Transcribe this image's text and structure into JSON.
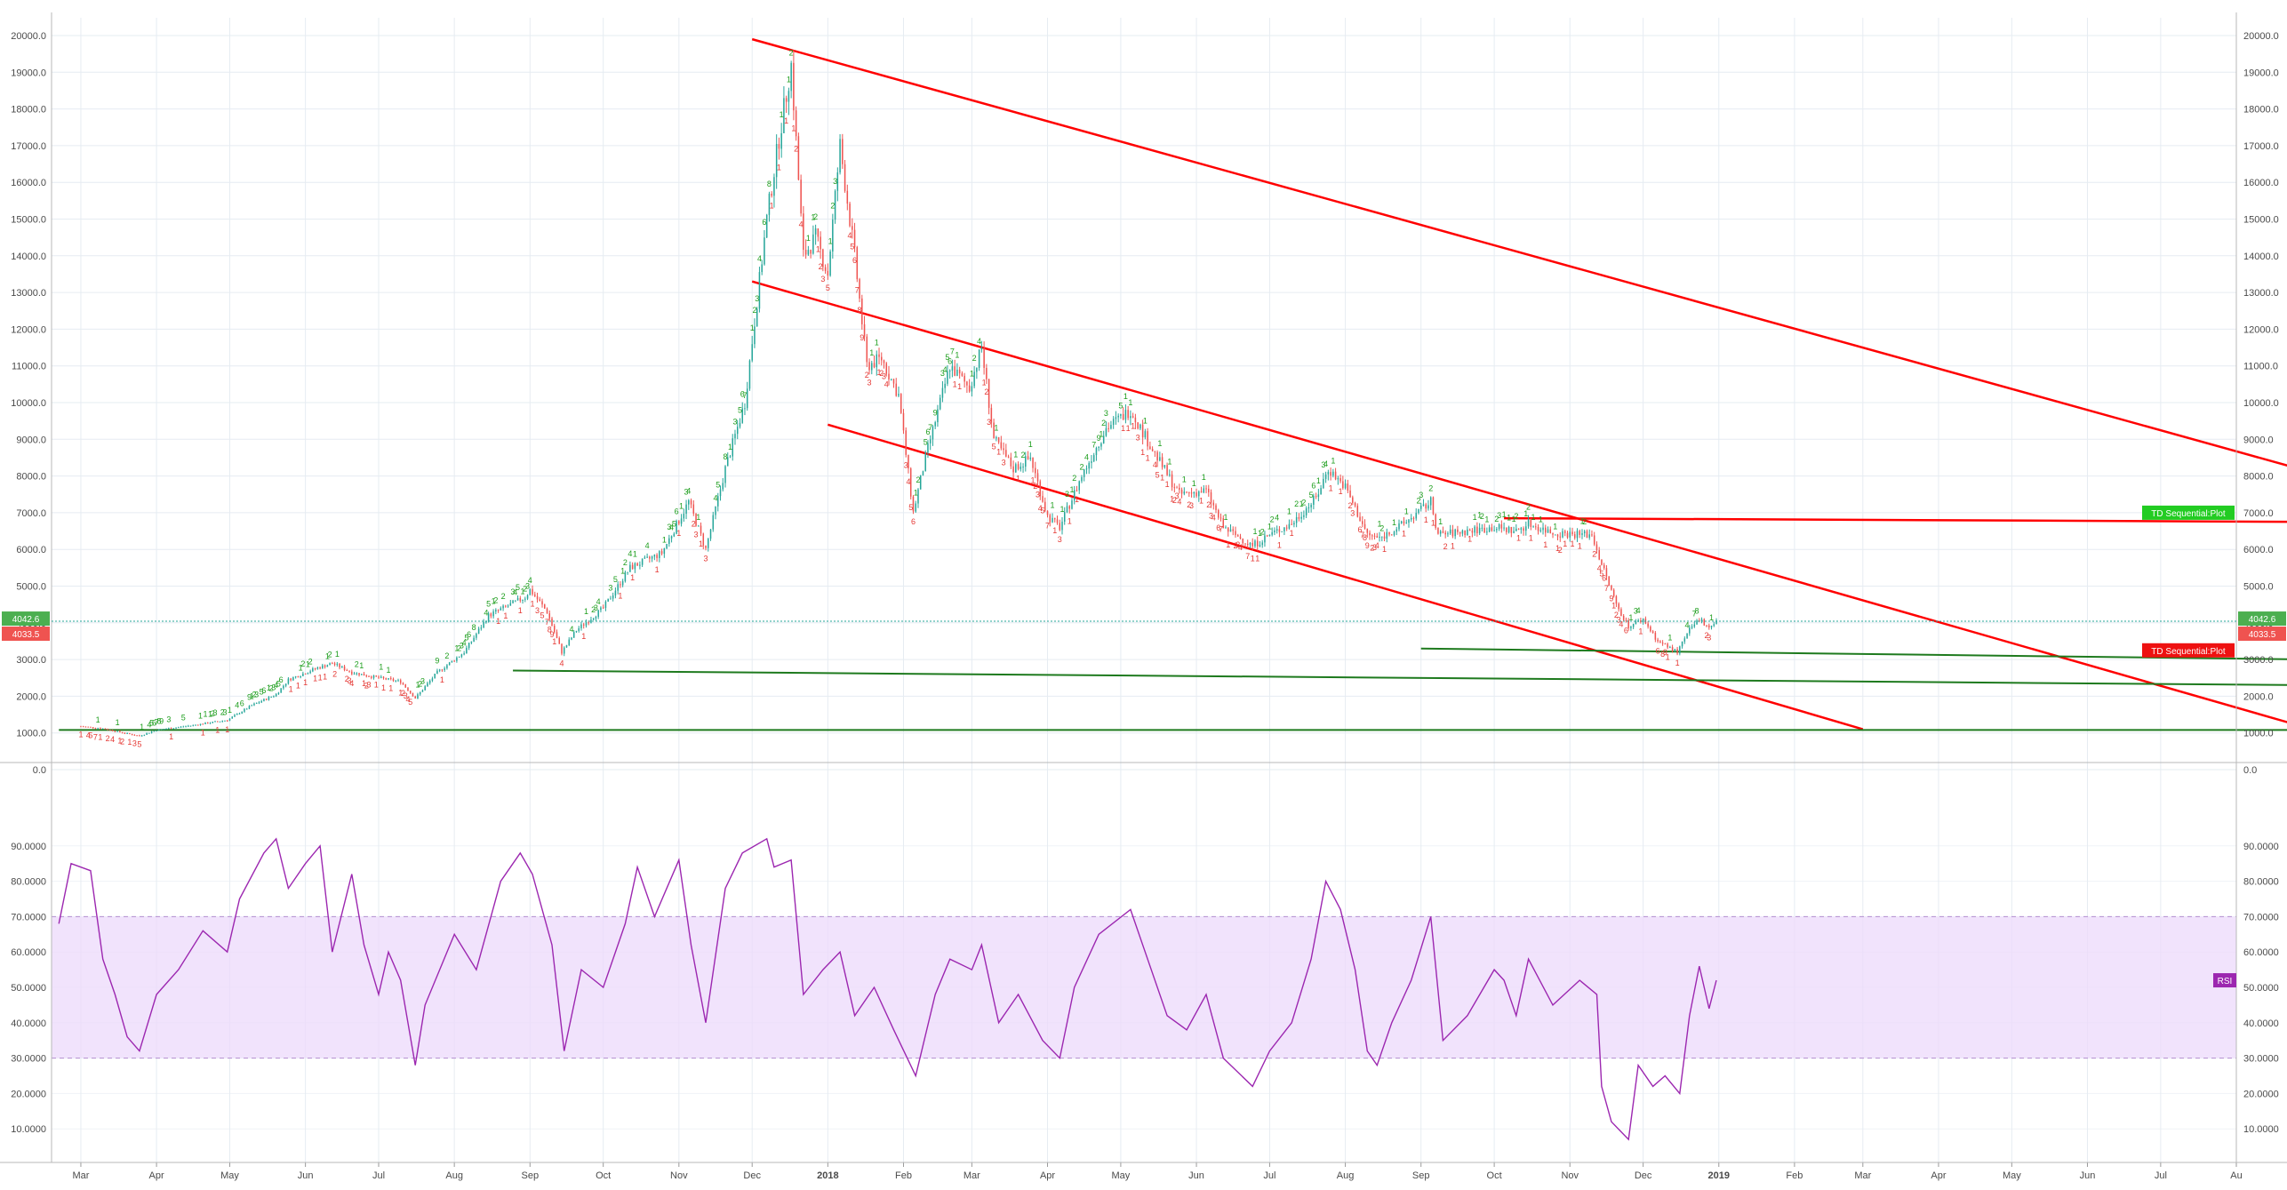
{
  "chart_data": [
    {
      "type": "candlestick",
      "title": "",
      "xlabel": "",
      "ylabel": "",
      "ylim": [
        0,
        20000
      ],
      "y_ticks": [
        "0.0",
        "1000.0",
        "2000.0",
        "3000.0",
        "4000.0",
        "5000.0",
        "6000.0",
        "7000.0",
        "8000.0",
        "9000.0",
        "10000.0",
        "11000.0",
        "12000.0",
        "13000.0",
        "14000.0",
        "15000.0",
        "16000.0",
        "17000.0",
        "18000.0",
        "19000.0",
        "20000.0"
      ],
      "grid": true,
      "colors": {
        "up": "#26a69a",
        "down": "#ef5350",
        "trend": "#ff0000",
        "support": "#1e7a1e"
      },
      "price_series": [
        [
          "2017-03-01",
          1180
        ],
        [
          "2017-03-10",
          1120
        ],
        [
          "2017-03-20",
          980
        ],
        [
          "2017-03-25",
          920
        ],
        [
          "2017-04-01",
          1080
        ],
        [
          "2017-04-15",
          1200
        ],
        [
          "2017-04-30",
          1350
        ],
        [
          "2017-05-10",
          1750
        ],
        [
          "2017-05-20",
          2050
        ],
        [
          "2017-05-25",
          2450
        ],
        [
          "2017-06-05",
          2750
        ],
        [
          "2017-06-12",
          2900
        ],
        [
          "2017-06-20",
          2650
        ],
        [
          "2017-07-01",
          2500
        ],
        [
          "2017-07-10",
          2400
        ],
        [
          "2017-07-16",
          1950
        ],
        [
          "2017-07-25",
          2650
        ],
        [
          "2017-08-05",
          3200
        ],
        [
          "2017-08-15",
          4200
        ],
        [
          "2017-08-30",
          4700
        ],
        [
          "2017-09-01",
          4900
        ],
        [
          "2017-09-08",
          4300
        ],
        [
          "2017-09-14",
          3200
        ],
        [
          "2017-09-20",
          3800
        ],
        [
          "2017-10-01",
          4400
        ],
        [
          "2017-10-12",
          5500
        ],
        [
          "2017-10-25",
          5900
        ],
        [
          "2017-11-05",
          7300
        ],
        [
          "2017-11-12",
          6000
        ],
        [
          "2017-11-20",
          8200
        ],
        [
          "2017-11-28",
          10000
        ],
        [
          "2017-12-07",
          15000
        ],
        [
          "2017-12-12",
          17200
        ],
        [
          "2017-12-17",
          19200
        ],
        [
          "2017-12-22",
          14000
        ],
        [
          "2017-12-27",
          14500
        ],
        [
          "2018-01-01",
          13500
        ],
        [
          "2018-01-06",
          17000
        ],
        [
          "2018-01-12",
          14000
        ],
        [
          "2018-01-17",
          11000
        ],
        [
          "2018-01-23",
          11200
        ],
        [
          "2018-01-30",
          10200
        ],
        [
          "2018-02-05",
          7000
        ],
        [
          "2018-02-10",
          8500
        ],
        [
          "2018-02-20",
          11000
        ],
        [
          "2018-02-28",
          10400
        ],
        [
          "2018-03-05",
          11500
        ],
        [
          "2018-03-10",
          9000
        ],
        [
          "2018-03-18",
          8200
        ],
        [
          "2018-03-25",
          8500
        ],
        [
          "2018-04-01",
          6900
        ],
        [
          "2018-04-06",
          6600
        ],
        [
          "2018-04-15",
          8000
        ],
        [
          "2018-04-25",
          9300
        ],
        [
          "2018-05-05",
          9800
        ],
        [
          "2018-05-15",
          8600
        ],
        [
          "2018-05-25",
          7500
        ],
        [
          "2018-06-05",
          7600
        ],
        [
          "2018-06-12",
          6600
        ],
        [
          "2018-06-24",
          6100
        ],
        [
          "2018-07-01",
          6400
        ],
        [
          "2018-07-10",
          6700
        ],
        [
          "2018-07-20",
          7400
        ],
        [
          "2018-07-25",
          8200
        ],
        [
          "2018-08-01",
          7700
        ],
        [
          "2018-08-10",
          6400
        ],
        [
          "2018-08-15",
          6300
        ],
        [
          "2018-08-25",
          6700
        ],
        [
          "2018-09-05",
          7300
        ],
        [
          "2018-09-08",
          6400
        ],
        [
          "2018-09-20",
          6500
        ],
        [
          "2018-10-01",
          6600
        ],
        [
          "2018-10-10",
          6500
        ],
        [
          "2018-10-15",
          6700
        ],
        [
          "2018-10-25",
          6450
        ],
        [
          "2018-11-10",
          6400
        ],
        [
          "2018-11-14",
          5600
        ],
        [
          "2018-11-20",
          4500
        ],
        [
          "2018-11-25",
          3900
        ],
        [
          "2018-12-01",
          4100
        ],
        [
          "2018-12-07",
          3500
        ],
        [
          "2018-12-15",
          3200
        ],
        [
          "2018-12-20",
          3800
        ],
        [
          "2018-12-24",
          4100
        ],
        [
          "2018-12-28",
          3900
        ],
        [
          "2018-12-31",
          4040
        ]
      ],
      "last_price_labels": [
        "4042.6",
        "4033.5"
      ],
      "legend_tags": [
        "TD Sequential:Plot",
        "TD Sequential:Plot"
      ],
      "td_counts_visible": [
        "1",
        "2",
        "3",
        "4",
        "5",
        "6",
        "7",
        "8",
        "9"
      ],
      "trendlines": [
        {
          "color": "trend",
          "from": [
            "2017-12-01",
            19900
          ],
          "to": [
            "2019-09-01",
            8100
          ]
        },
        {
          "color": "trend",
          "from": [
            "2017-12-01",
            13300
          ],
          "to": [
            "2019-09-01",
            1100
          ]
        },
        {
          "color": "trend",
          "from": [
            "2018-01-01",
            9400
          ],
          "to": [
            "2019-03-01",
            1100
          ]
        },
        {
          "color": "trend",
          "from": [
            "2018-10-05",
            6850
          ],
          "to": [
            "2019-09-01",
            6750
          ]
        },
        {
          "color": "support",
          "from": [
            "2017-08-25",
            2700
          ],
          "to": [
            "2019-09-01",
            2300
          ]
        },
        {
          "color": "support",
          "from": [
            "2018-09-01",
            3300
          ],
          "to": [
            "2019-09-01",
            3000
          ]
        },
        {
          "color": "support",
          "from": [
            "2017-02-20",
            1080
          ],
          "to": [
            "2019-09-01",
            1080
          ]
        }
      ],
      "x_ticks": [
        "Mar",
        "Apr",
        "May",
        "Jun",
        "Jul",
        "Aug",
        "Sep",
        "Oct",
        "Nov",
        "Dec",
        "2018",
        "Feb",
        "Mar",
        "Apr",
        "May",
        "Jun",
        "Jul",
        "Aug",
        "Sep",
        "Oct",
        "Nov",
        "Dec",
        "2019",
        "Feb",
        "Mar",
        "Apr",
        "May",
        "Jun",
        "Jul",
        "Au"
      ]
    },
    {
      "type": "line",
      "title": "",
      "legend_tag": "RSI",
      "ylim": [
        0,
        100
      ],
      "y_ticks": [
        "10.0000",
        "20.0000",
        "30.0000",
        "40.0000",
        "50.0000",
        "60.0000",
        "70.0000",
        "80.0000",
        "90.0000"
      ],
      "band": [
        30,
        70
      ],
      "colors": {
        "line": "#9c27b0",
        "band": "#ecd9fb"
      },
      "rsi_series": [
        [
          "2017-02-20",
          68
        ],
        [
          "2017-02-25",
          85
        ],
        [
          "2017-03-05",
          83
        ],
        [
          "2017-03-10",
          58
        ],
        [
          "2017-03-15",
          48
        ],
        [
          "2017-03-20",
          36
        ],
        [
          "2017-03-25",
          32
        ],
        [
          "2017-04-01",
          48
        ],
        [
          "2017-04-10",
          55
        ],
        [
          "2017-04-20",
          66
        ],
        [
          "2017-04-30",
          60
        ],
        [
          "2017-05-05",
          75
        ],
        [
          "2017-05-15",
          88
        ],
        [
          "2017-05-20",
          92
        ],
        [
          "2017-05-25",
          78
        ],
        [
          "2017-06-01",
          85
        ],
        [
          "2017-06-07",
          90
        ],
        [
          "2017-06-12",
          60
        ],
        [
          "2017-06-20",
          82
        ],
        [
          "2017-06-25",
          62
        ],
        [
          "2017-07-01",
          48
        ],
        [
          "2017-07-05",
          60
        ],
        [
          "2017-07-10",
          52
        ],
        [
          "2017-07-16",
          28
        ],
        [
          "2017-07-20",
          45
        ],
        [
          "2017-08-01",
          65
        ],
        [
          "2017-08-10",
          55
        ],
        [
          "2017-08-20",
          80
        ],
        [
          "2017-08-28",
          88
        ],
        [
          "2017-09-02",
          82
        ],
        [
          "2017-09-10",
          62
        ],
        [
          "2017-09-15",
          32
        ],
        [
          "2017-09-22",
          55
        ],
        [
          "2017-10-01",
          50
        ],
        [
          "2017-10-10",
          68
        ],
        [
          "2017-10-15",
          84
        ],
        [
          "2017-10-22",
          70
        ],
        [
          "2017-11-01",
          86
        ],
        [
          "2017-11-06",
          62
        ],
        [
          "2017-11-12",
          40
        ],
        [
          "2017-11-20",
          78
        ],
        [
          "2017-11-27",
          88
        ],
        [
          "2017-12-07",
          92
        ],
        [
          "2017-12-10",
          84
        ],
        [
          "2017-12-17",
          86
        ],
        [
          "2017-12-22",
          48
        ],
        [
          "2017-12-30",
          55
        ],
        [
          "2018-01-06",
          60
        ],
        [
          "2018-01-12",
          42
        ],
        [
          "2018-01-20",
          50
        ],
        [
          "2018-01-28",
          38
        ],
        [
          "2018-02-06",
          25
        ],
        [
          "2018-02-14",
          48
        ],
        [
          "2018-02-20",
          58
        ],
        [
          "2018-03-01",
          55
        ],
        [
          "2018-03-05",
          62
        ],
        [
          "2018-03-12",
          40
        ],
        [
          "2018-03-20",
          48
        ],
        [
          "2018-03-30",
          35
        ],
        [
          "2018-04-06",
          30
        ],
        [
          "2018-04-12",
          50
        ],
        [
          "2018-04-22",
          65
        ],
        [
          "2018-05-05",
          72
        ],
        [
          "2018-05-10",
          62
        ],
        [
          "2018-05-20",
          42
        ],
        [
          "2018-05-28",
          38
        ],
        [
          "2018-06-05",
          48
        ],
        [
          "2018-06-12",
          30
        ],
        [
          "2018-06-24",
          22
        ],
        [
          "2018-07-01",
          32
        ],
        [
          "2018-07-10",
          40
        ],
        [
          "2018-07-18",
          58
        ],
        [
          "2018-07-24",
          80
        ],
        [
          "2018-07-30",
          72
        ],
        [
          "2018-08-05",
          55
        ],
        [
          "2018-08-10",
          32
        ],
        [
          "2018-08-14",
          28
        ],
        [
          "2018-08-20",
          40
        ],
        [
          "2018-08-28",
          52
        ],
        [
          "2018-09-05",
          70
        ],
        [
          "2018-09-10",
          35
        ],
        [
          "2018-09-20",
          42
        ],
        [
          "2018-10-01",
          55
        ],
        [
          "2018-10-05",
          52
        ],
        [
          "2018-10-10",
          42
        ],
        [
          "2018-10-15",
          58
        ],
        [
          "2018-10-25",
          45
        ],
        [
          "2018-11-05",
          52
        ],
        [
          "2018-11-12",
          48
        ],
        [
          "2018-11-14",
          22
        ],
        [
          "2018-11-18",
          12
        ],
        [
          "2018-11-25",
          7
        ],
        [
          "2018-11-29",
          28
        ],
        [
          "2018-12-05",
          22
        ],
        [
          "2018-12-10",
          25
        ],
        [
          "2018-12-16",
          20
        ],
        [
          "2018-12-20",
          42
        ],
        [
          "2018-12-24",
          56
        ],
        [
          "2018-12-28",
          44
        ],
        [
          "2018-12-31",
          52
        ]
      ]
    }
  ]
}
